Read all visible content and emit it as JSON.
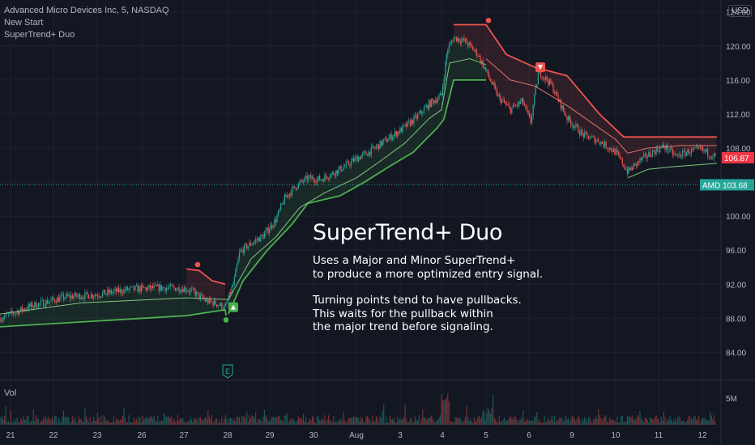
{
  "legend": {
    "symbol": "Advanced Micro Devices Inc, 5, NASDAQ",
    "indicator1": "New Start",
    "indicator2": "SuperTrend+ Duo"
  },
  "currency_button": "USD",
  "volume_label": "Vol",
  "overlay": {
    "title": "SuperTrend+ Duo",
    "para1": "Uses a Major and Minor SuperTrend+\nto produce a more optimized entry signal.",
    "para2": "Turning points tend to have pullbacks.\nThis waits for the pullback within\nthe major trend before signaling."
  },
  "colors": {
    "background": "#131722",
    "grid": "#1e222d",
    "up": "#26a69a",
    "down": "#ef5350",
    "bull_line": "#4caf50",
    "bear_line": "#ef5350",
    "minor_bull": "#81c784",
    "minor_bear": "#e57373",
    "last_price_tag": "#f23645",
    "symbol_tag": "#26a69a"
  },
  "chart_data": {
    "type": "candlestick",
    "x_ticks": [
      "21",
      "22",
      "23",
      "26",
      "27",
      "28",
      "29",
      "30",
      "Aug",
      "3",
      "4",
      "5",
      "6",
      "9",
      "10",
      "11",
      "12"
    ],
    "y_ticks": [
      "84.00",
      "88.00",
      "92.00",
      "96.00",
      "100.00",
      "104.00",
      "108.00",
      "112.00",
      "116.00",
      "120.00",
      "124.00"
    ],
    "ylim": [
      80.9,
      125.4
    ],
    "volume_tick": "5M",
    "last_price": {
      "value": 106.87,
      "label": "106.87"
    },
    "symbol_price": {
      "symbol": "AMD",
      "value": 103.68,
      "label": "103.68"
    },
    "price_path": [
      [
        0,
        88.0
      ],
      [
        40,
        89.5
      ],
      [
        80,
        90.5
      ],
      [
        120,
        90.8
      ],
      [
        160,
        91.4
      ],
      [
        200,
        91.6
      ],
      [
        228,
        91.5
      ],
      [
        240,
        91.0
      ],
      [
        255,
        90.0
      ],
      [
        268,
        89.7
      ],
      [
        278,
        89.2
      ],
      [
        288,
        92.0
      ],
      [
        296,
        95.8
      ],
      [
        310,
        96.8
      ],
      [
        325,
        97.7
      ],
      [
        340,
        99.5
      ],
      [
        352,
        102.2
      ],
      [
        365,
        103.5
      ],
      [
        380,
        104.5
      ],
      [
        395,
        104.3
      ],
      [
        410,
        105.0
      ],
      [
        425,
        105.8
      ],
      [
        440,
        106.8
      ],
      [
        455,
        107.5
      ],
      [
        470,
        108.5
      ],
      [
        485,
        109.5
      ],
      [
        500,
        110.5
      ],
      [
        515,
        111.7
      ],
      [
        530,
        113.2
      ],
      [
        545,
        114.2
      ],
      [
        552,
        119.5
      ],
      [
        560,
        121.0
      ],
      [
        575,
        120.5
      ],
      [
        590,
        119.0
      ],
      [
        600,
        117.0
      ],
      [
        615,
        114.0
      ],
      [
        630,
        112.5
      ],
      [
        645,
        113.5
      ],
      [
        655,
        111.0
      ],
      [
        665,
        117.0
      ],
      [
        680,
        115.5
      ],
      [
        700,
        111.5
      ],
      [
        720,
        109.5
      ],
      [
        740,
        108.8
      ],
      [
        760,
        107.5
      ],
      [
        775,
        105.2
      ],
      [
        790,
        106.5
      ],
      [
        805,
        107.5
      ],
      [
        820,
        108.2
      ],
      [
        835,
        107.0
      ],
      [
        850,
        107.6
      ],
      [
        865,
        107.8
      ],
      [
        885,
        106.9
      ]
    ],
    "major_supertrend": [
      {
        "trend": "bull",
        "points": [
          [
            0,
            87
          ],
          [
            230,
            88.3
          ],
          [
            278,
            89
          ],
          [
            279,
            88.3
          ]
        ]
      },
      {
        "trend": "bear",
        "points": [
          [
            230,
            93.8
          ],
          [
            246,
            93.6
          ],
          [
            262,
            92.4
          ],
          [
            278,
            92.0
          ]
        ]
      },
      {
        "trend": "bull",
        "points": [
          [
            282,
            88.5
          ],
          [
            300,
            92.4
          ],
          [
            330,
            96
          ],
          [
            360,
            99
          ],
          [
            380,
            101.5
          ],
          [
            420,
            102.4
          ],
          [
            450,
            104.0
          ],
          [
            480,
            105.8
          ],
          [
            510,
            107.5
          ],
          [
            540,
            110.4
          ],
          [
            548,
            111.4
          ],
          [
            560,
            116
          ],
          [
            600,
            116
          ]
        ]
      },
      {
        "trend": "bear",
        "points": [
          [
            560,
            122.5
          ],
          [
            600,
            122.5
          ],
          [
            625,
            119
          ],
          [
            660,
            117.5
          ],
          [
            700,
            116.5
          ],
          [
            740,
            112
          ],
          [
            770,
            109.3
          ],
          [
            885,
            109.3
          ]
        ]
      }
    ],
    "minor_supertrend": [
      {
        "trend": "bull",
        "points": [
          [
            0,
            88.5
          ],
          [
            100,
            89.8
          ],
          [
            230,
            90.4
          ],
          [
            282,
            90.2
          ],
          [
            310,
            95.0
          ],
          [
            340,
            97.5
          ],
          [
            370,
            101.0
          ],
          [
            400,
            102.7
          ],
          [
            440,
            104.5
          ],
          [
            470,
            106.5
          ],
          [
            500,
            108.6
          ],
          [
            530,
            111.5
          ],
          [
            545,
            112.5
          ],
          [
            555,
            118
          ],
          [
            580,
            118.5
          ],
          [
            600,
            117.8
          ]
        ]
      },
      {
        "trend": "bear",
        "points": [
          [
            600,
            118.5
          ],
          [
            630,
            116
          ],
          [
            660,
            115.3
          ],
          [
            700,
            113
          ],
          [
            730,
            111
          ],
          [
            760,
            109
          ],
          [
            775,
            107.4
          ],
          [
            800,
            108
          ],
          [
            840,
            108.3
          ],
          [
            885,
            108.3
          ]
        ]
      },
      {
        "trend": "bull",
        "points": [
          [
            775,
            104.5
          ],
          [
            800,
            105.5
          ],
          [
            830,
            105.8
          ],
          [
            885,
            106.2
          ]
        ]
      }
    ],
    "signals": [
      {
        "type": "major_bear",
        "x": 244,
        "y": 94.3
      },
      {
        "type": "major_bull",
        "x": 279,
        "y": 87.8
      },
      {
        "type": "entry_long",
        "x": 288,
        "y": 89.3
      },
      {
        "type": "major_bear",
        "x": 603,
        "y": 123.0
      },
      {
        "type": "entry_short",
        "x": 667,
        "y": 117.5
      }
    ],
    "earnings_marker": {
      "x": 281,
      "label": "E"
    }
  }
}
